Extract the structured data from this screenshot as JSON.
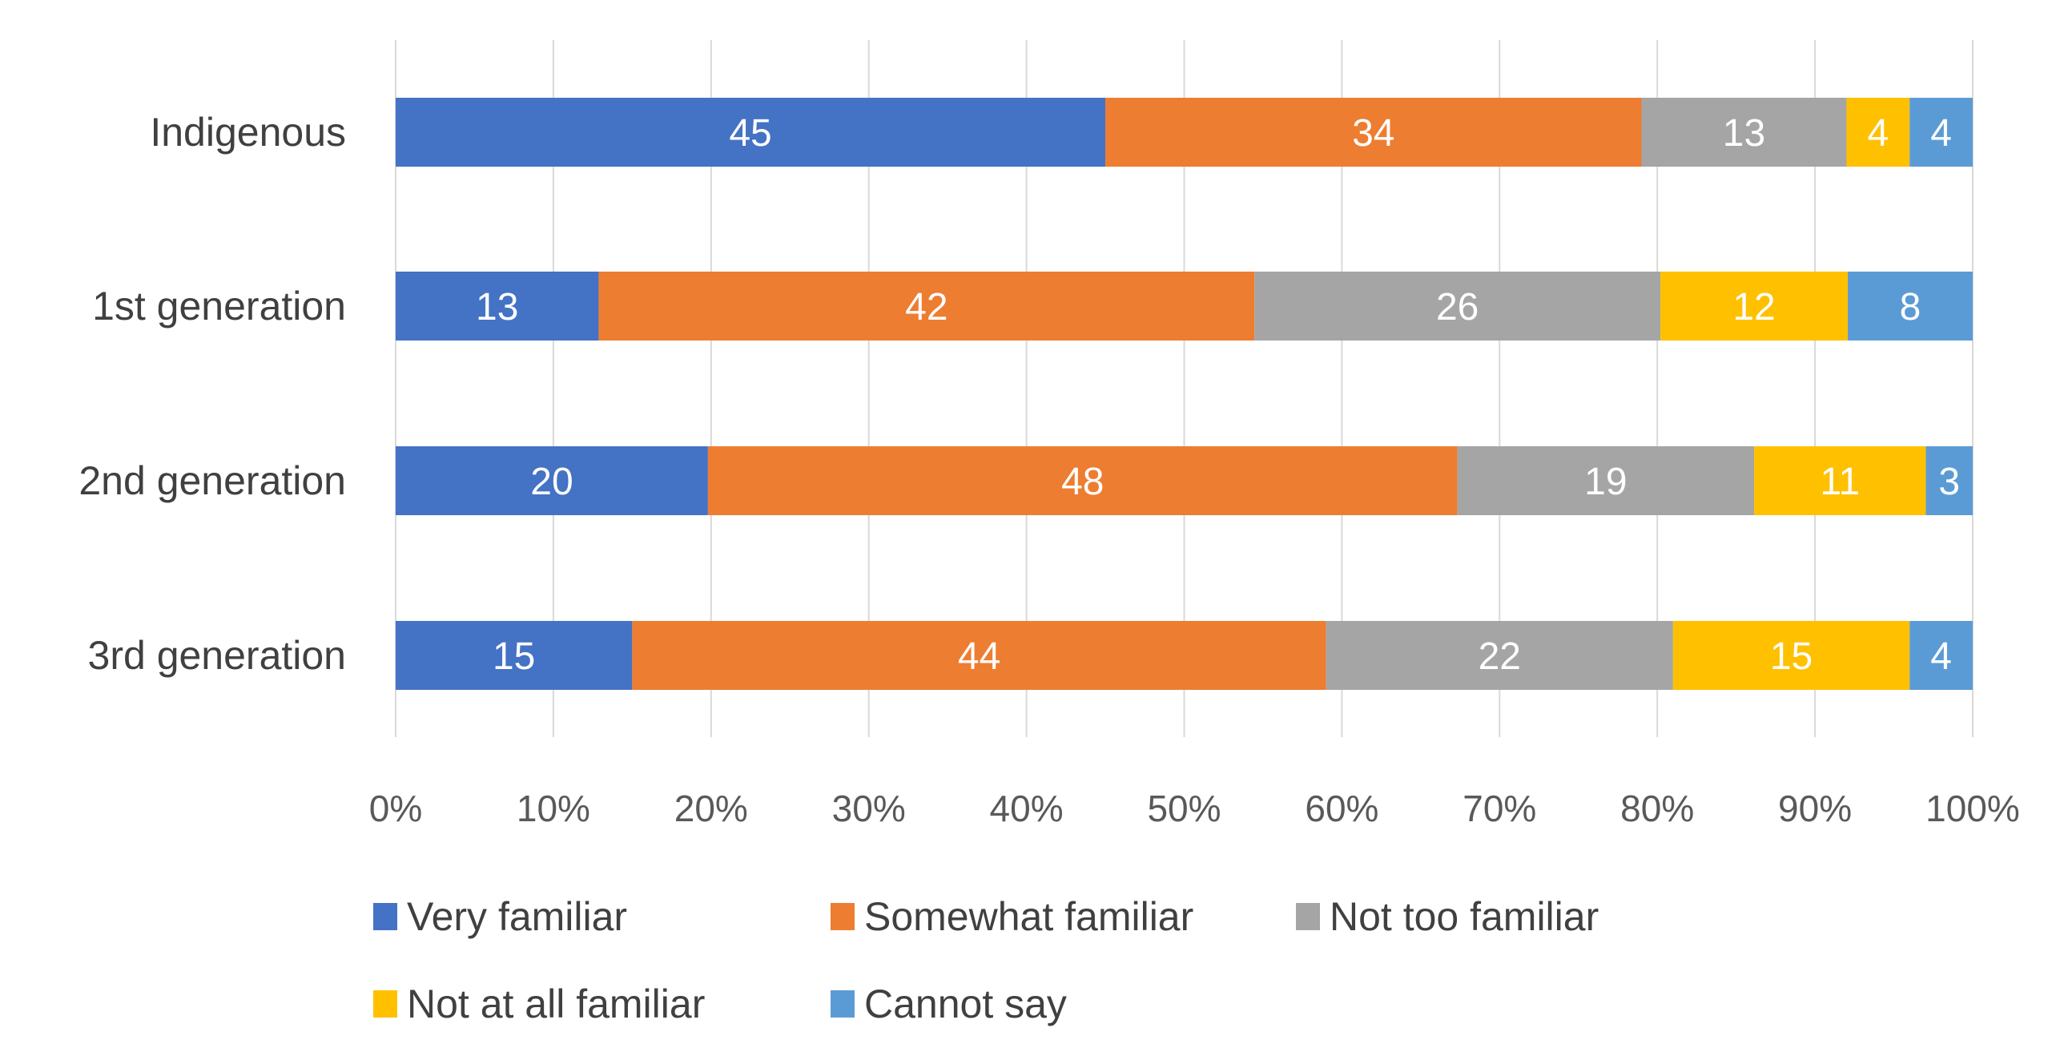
{
  "chart_data": {
    "type": "bar",
    "orientation": "horizontal",
    "stacked": "percent",
    "title": "",
    "xlabel": "",
    "ylabel": "",
    "xlim": [
      0,
      100
    ],
    "grid": true,
    "legend_position": "bottom",
    "categories": [
      "Indigenous",
      "1st generation",
      "2nd generation",
      "3rd generation"
    ],
    "x_tick_labels": [
      "0%",
      "10%",
      "20%",
      "30%",
      "40%",
      "50%",
      "60%",
      "70%",
      "80%",
      "90%",
      "100%"
    ],
    "series": [
      {
        "name": "Very familiar",
        "color": "#4472C4",
        "values": [
          45,
          13,
          20,
          15
        ]
      },
      {
        "name": "Somewhat familiar",
        "color": "#ED7D31",
        "values": [
          34,
          42,
          48,
          44
        ]
      },
      {
        "name": "Not too familiar",
        "color": "#A5A5A5",
        "values": [
          13,
          26,
          19,
          22
        ]
      },
      {
        "name": "Not at all familiar",
        "color": "#FFC000",
        "values": [
          4,
          12,
          11,
          15
        ]
      },
      {
        "name": "Cannot say",
        "color": "#5B9BD5",
        "values": [
          4,
          8,
          3,
          4
        ]
      }
    ]
  }
}
